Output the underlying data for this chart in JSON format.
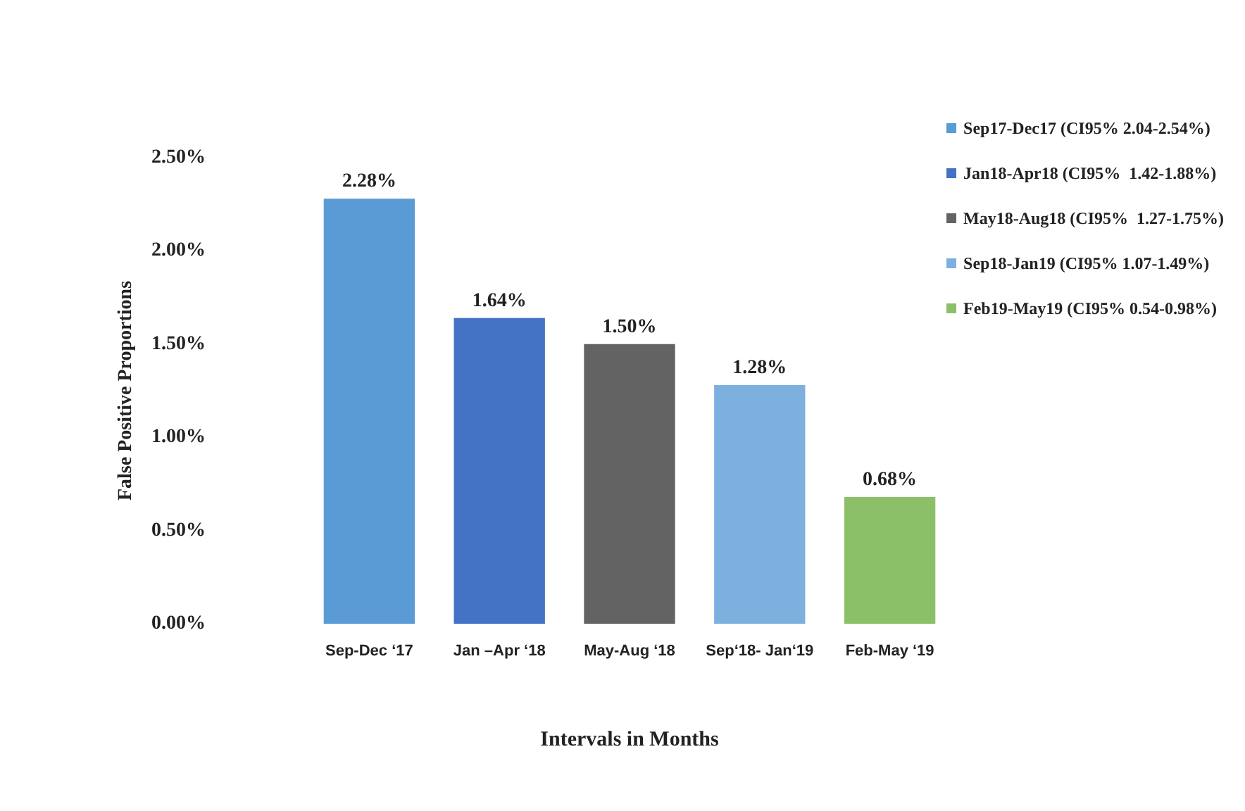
{
  "chart_data": {
    "type": "bar",
    "xlabel": "Intervals in Months",
    "ylabel": "False Positive Proportions",
    "categories": [
      "Sep-Dec ‘17",
      "Jan –Apr ‘18",
      "May-Aug ‘18",
      "Sep‘18- Jan‘19",
      "Feb-May ‘19"
    ],
    "series": [
      {
        "name": "Sep17-Dec17 (CI95% 2.04-2.54%)",
        "color": "#5b9bd5",
        "values": [
          2.28,
          null,
          null,
          null,
          null
        ],
        "value_labels": [
          "2.28%",
          null,
          null,
          null,
          null
        ]
      },
      {
        "name": "Jan18-Apr18 (CI95%  1.42-1.88%)",
        "color": "#4472c4",
        "values": [
          null,
          1.64,
          null,
          null,
          null
        ],
        "value_labels": [
          null,
          "1.64%",
          null,
          null,
          null
        ]
      },
      {
        "name": "May18-Aug18 (CI95%  1.27-1.75%)",
        "color": "#636363",
        "values": [
          null,
          null,
          1.5,
          null,
          null
        ],
        "value_labels": [
          null,
          null,
          "1.50%",
          null,
          null
        ]
      },
      {
        "name": "Sep18-Jan19 (CI95% 1.07-1.49%)",
        "color": "#7eb0df",
        "values": [
          null,
          null,
          null,
          1.28,
          null
        ],
        "value_labels": [
          null,
          null,
          null,
          "1.28%",
          null
        ]
      },
      {
        "name": "Feb19-May19 (CI95% 0.54-0.98%)",
        "color": "#8cc068",
        "values": [
          null,
          null,
          null,
          null,
          0.68
        ],
        "value_labels": [
          null,
          null,
          null,
          null,
          "0.68%"
        ]
      }
    ],
    "ylim": [
      0,
      2.5
    ],
    "yticks": [
      {
        "value": 0,
        "label": "0.00%"
      },
      {
        "value": 0.5,
        "label": "0.50%"
      },
      {
        "value": 1,
        "label": "1.00%"
      },
      {
        "value": 1.5,
        "label": "1.50%"
      },
      {
        "value": 2,
        "label": "2.00%"
      },
      {
        "value": 2.5,
        "label": "2.50%"
      }
    ],
    "grid": false,
    "legend": "right"
  }
}
